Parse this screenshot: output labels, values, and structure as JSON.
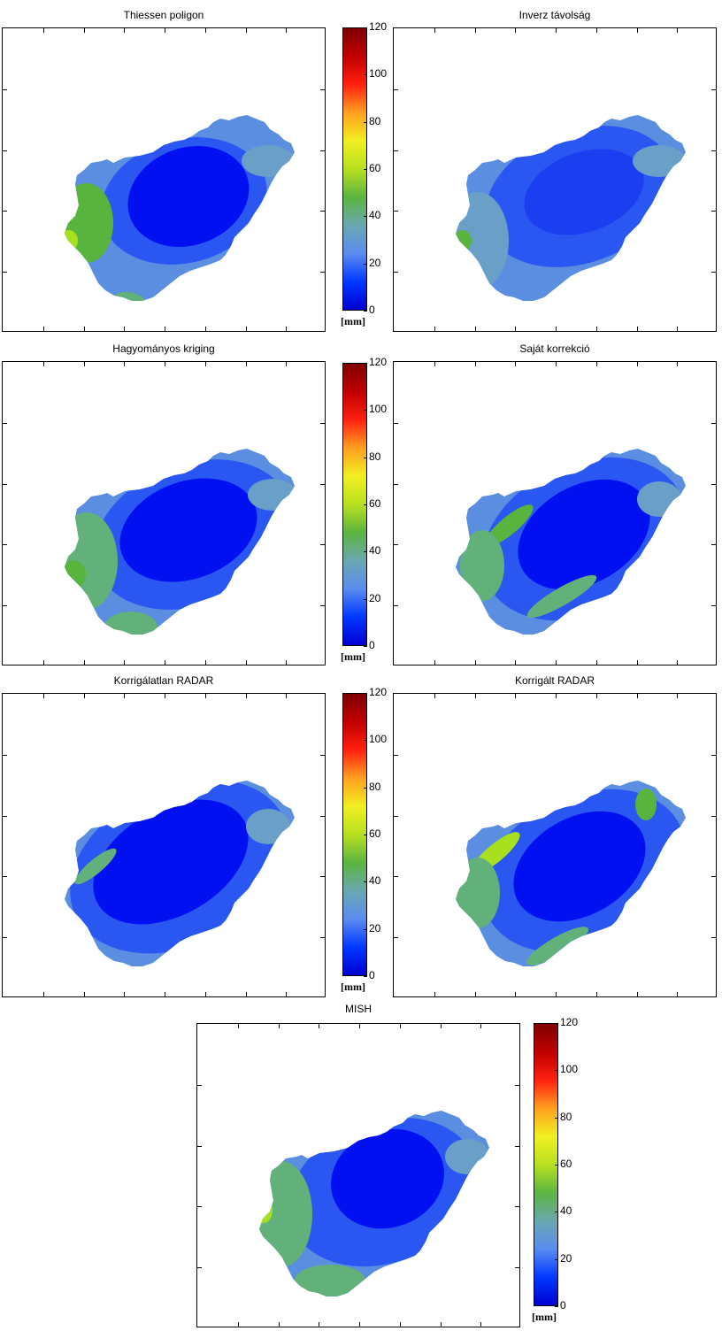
{
  "colors": {
    "deep_blue": "#0010f0",
    "blue": "#2a56f2",
    "light_blue": "#5b8ee0",
    "steel": "#6aa0c8",
    "teal_green": "#62b07a",
    "green": "#58b43c",
    "yellow_green": "#a8e020",
    "colorbar_stops": [
      "#0000d0",
      "#0038ff",
      "#5a8cf0",
      "#6aa8b0",
      "#5cb440",
      "#b8e020",
      "#f0f020",
      "#ffa020",
      "#ff2010",
      "#c00000",
      "#800000"
    ]
  },
  "chart_data": [
    {
      "type": "heatmap",
      "title": "Thiessen poligon",
      "colorbar": {
        "ticks": [
          "0",
          "20",
          "40",
          "60",
          "80",
          "100",
          "120"
        ],
        "unit": "[mm]",
        "range": [
          0,
          120
        ]
      }
    },
    {
      "type": "heatmap",
      "title": "Inverz távolság"
    },
    {
      "type": "heatmap",
      "title": "Hagyományos kriging",
      "colorbar": {
        "ticks": [
          "0",
          "20",
          "40",
          "60",
          "80",
          "100",
          "120"
        ],
        "unit": "[mm]",
        "range": [
          0,
          120
        ]
      }
    },
    {
      "type": "heatmap",
      "title": "Saját korrekció"
    },
    {
      "type": "heatmap",
      "title": "Korrigálatlan RADAR",
      "colorbar": {
        "ticks": [
          "0",
          "20",
          "40",
          "60",
          "80",
          "100",
          "120"
        ],
        "unit": "[mm]",
        "range": [
          0,
          120
        ]
      }
    },
    {
      "type": "heatmap",
      "title": "Korrigált RADAR"
    },
    {
      "type": "heatmap",
      "title": "MISH",
      "colorbar": {
        "ticks": [
          "0",
          "20",
          "40",
          "60",
          "80",
          "100",
          "120"
        ],
        "unit": "[mm]",
        "range": [
          0,
          120
        ]
      }
    }
  ]
}
